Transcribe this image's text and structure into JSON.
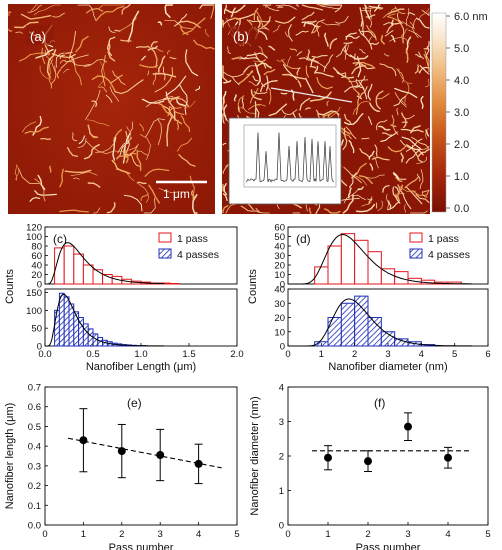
{
  "panels": {
    "a": {
      "label": "(a)",
      "scale_bar": "1 μm"
    },
    "b": {
      "label": "(b)"
    },
    "colorbar": {
      "ticks": [
        "6.0 nm",
        "5.0",
        "4.0",
        "3.0",
        "2.0",
        "1.0",
        "0.0"
      ],
      "range_nm": [
        0,
        6
      ],
      "colors": [
        "#7a0f03",
        "#a4250a",
        "#c8551a",
        "#e08a3d",
        "#f1bd82",
        "#fae8cf",
        "#ffffff"
      ]
    }
  },
  "colors": {
    "red": "#e0161b",
    "blue": "#1f2fb8",
    "fit": "#000000"
  },
  "chart_data": [
    {
      "id": "c",
      "type": "bar",
      "label": "(c)",
      "xlabel": "Nanofiber Length (μm)",
      "ylabel": "Counts",
      "xlim": [
        0,
        2.0
      ],
      "xticks": [
        "0.0",
        "0.5",
        "1.0",
        "1.5",
        "2.0"
      ],
      "legend": {
        "position": "top-right",
        "entries": [
          "1 pass",
          "4 passes"
        ]
      },
      "bin_width": 0.1,
      "series": [
        {
          "name": "1 pass",
          "ylim": [
            0,
            120
          ],
          "yticks": [
            "0",
            "20",
            "40",
            "60",
            "80",
            "100",
            "120"
          ],
          "bin_starts": [
            0.1,
            0.2,
            0.3,
            0.4,
            0.5,
            0.6,
            0.7,
            0.8,
            0.9,
            1.0,
            1.1,
            1.2,
            1.3
          ],
          "values": [
            76,
            80,
            63,
            40,
            30,
            20,
            16,
            10,
            6,
            4,
            2,
            2,
            1
          ]
        },
        {
          "name": "4 passes",
          "ylim": [
            0,
            160
          ],
          "yticks": [
            "0",
            "50",
            "100",
            "150"
          ],
          "bin_starts": [
            0.1,
            0.15,
            0.2,
            0.25,
            0.3,
            0.35,
            0.4,
            0.45,
            0.5,
            0.55,
            0.6,
            0.65,
            0.7,
            0.75,
            0.8,
            0.85,
            0.9,
            0.95,
            1.0
          ],
          "bin_width": 0.05,
          "values": [
            100,
            148,
            138,
            118,
            96,
            80,
            62,
            48,
            34,
            24,
            16,
            12,
            8,
            6,
            4,
            3,
            2,
            1,
            1
          ]
        }
      ]
    },
    {
      "id": "d",
      "type": "bar",
      "label": "(d)",
      "xlabel": "Nanofiber diameter (nm)",
      "ylabel": "Counts",
      "xlim": [
        0,
        6
      ],
      "xticks": [
        "0",
        "1",
        "2",
        "3",
        "4",
        "5",
        "6"
      ],
      "legend": {
        "position": "top-right",
        "entries": [
          "1 pass",
          "4 passes"
        ]
      },
      "bin_width": 0.4,
      "series": [
        {
          "name": "1 pass",
          "ylim": [
            0,
            60
          ],
          "yticks": [
            "0",
            "10",
            "20",
            "30",
            "40",
            "50",
            "60"
          ],
          "bin_starts": [
            0.8,
            1.2,
            1.6,
            2.0,
            2.4,
            2.8,
            3.2,
            3.6,
            4.0,
            4.4,
            4.8
          ],
          "values": [
            18,
            40,
            53,
            46,
            34,
            16,
            13,
            6,
            4,
            2,
            2
          ]
        },
        {
          "name": "4 passes",
          "ylim": [
            0,
            40
          ],
          "yticks": [
            "0",
            "10",
            "20",
            "30",
            "40"
          ],
          "bin_starts": [
            0.8,
            1.2,
            1.6,
            2.0,
            2.4,
            2.8,
            3.2,
            3.6,
            4.0
          ],
          "values": [
            3,
            20,
            30,
            35,
            20,
            10,
            5,
            3,
            1
          ]
        }
      ]
    },
    {
      "id": "e",
      "type": "scatter",
      "label": "(e)",
      "xlabel": "Pass number",
      "ylabel": "Nanofiber length (μm)",
      "xlim": [
        0,
        5
      ],
      "ylim": [
        0,
        0.7
      ],
      "xticks": [
        "0",
        "1",
        "2",
        "3",
        "4",
        "5"
      ],
      "yticks": [
        "0.0",
        "0.1",
        "0.2",
        "0.3",
        "0.4",
        "0.5",
        "0.6",
        "0.7"
      ],
      "x": [
        1,
        2,
        3,
        4
      ],
      "y": [
        0.43,
        0.375,
        0.355,
        0.31
      ],
      "yerr": [
        0.16,
        0.135,
        0.13,
        0.1
      ],
      "trend": {
        "x": [
          0.6,
          4.6
        ],
        "y": [
          0.44,
          0.29
        ]
      }
    },
    {
      "id": "f",
      "type": "scatter",
      "label": "(f)",
      "xlabel": "Pass number",
      "ylabel": "Nanofiber diameter (nm)",
      "xlim": [
        0,
        5
      ],
      "ylim": [
        0,
        4
      ],
      "xticks": [
        "0",
        "1",
        "2",
        "3",
        "4",
        "5"
      ],
      "yticks": [
        "0",
        "1",
        "2",
        "3",
        "4"
      ],
      "x": [
        1,
        2,
        3,
        4
      ],
      "y": [
        1.95,
        1.85,
        2.85,
        1.95
      ],
      "yerr": [
        0.35,
        0.3,
        0.4,
        0.3
      ],
      "trend": {
        "x": [
          0.6,
          4.6
        ],
        "y": [
          2.15,
          2.15
        ]
      }
    }
  ]
}
